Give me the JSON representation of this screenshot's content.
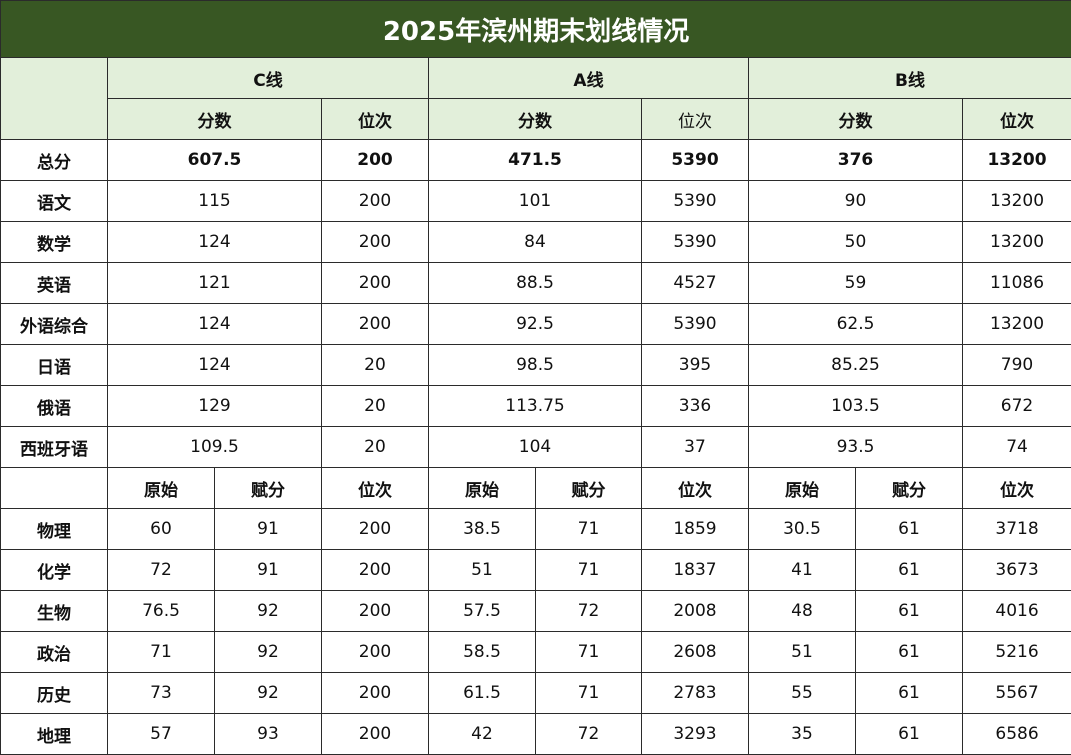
{
  "title": "2025年滨州期末划线情况",
  "groups": [
    "C线",
    "A线",
    "B线"
  ],
  "header_sub": [
    "分数",
    "位次",
    "分数",
    "位次",
    "分数",
    "位次"
  ],
  "rows1": [
    {
      "subject": "总分",
      "v": [
        "607.5",
        "200",
        "471.5",
        "5390",
        "376",
        "13200"
      ]
    },
    {
      "subject": "语文",
      "v": [
        "115",
        "200",
        "101",
        "5390",
        "90",
        "13200"
      ]
    },
    {
      "subject": "数学",
      "v": [
        "124",
        "200",
        "84",
        "5390",
        "50",
        "13200"
      ]
    },
    {
      "subject": "英语",
      "v": [
        "121",
        "200",
        "88.5",
        "4527",
        "59",
        "11086"
      ]
    },
    {
      "subject": "外语综合",
      "v": [
        "124",
        "200",
        "92.5",
        "5390",
        "62.5",
        "13200"
      ]
    },
    {
      "subject": "日语",
      "v": [
        "124",
        "20",
        "98.5",
        "395",
        "85.25",
        "790"
      ]
    },
    {
      "subject": "俄语",
      "v": [
        "129",
        "20",
        "113.75",
        "336",
        "103.5",
        "672"
      ]
    },
    {
      "subject": "西班牙语",
      "v": [
        "109.5",
        "20",
        "104",
        "37",
        "93.5",
        "74"
      ]
    }
  ],
  "header2": [
    "原始",
    "赋分",
    "位次",
    "原始",
    "赋分",
    "位次",
    "原始",
    "赋分",
    "位次"
  ],
  "rows2": [
    {
      "subject": "物理",
      "v": [
        "60",
        "91",
        "200",
        "38.5",
        "71",
        "1859",
        "30.5",
        "61",
        "3718"
      ]
    },
    {
      "subject": "化学",
      "v": [
        "72",
        "91",
        "200",
        "51",
        "71",
        "1837",
        "41",
        "61",
        "3673"
      ]
    },
    {
      "subject": "生物",
      "v": [
        "76.5",
        "92",
        "200",
        "57.5",
        "72",
        "2008",
        "48",
        "61",
        "4016"
      ]
    },
    {
      "subject": "政治",
      "v": [
        "71",
        "92",
        "200",
        "58.5",
        "71",
        "2608",
        "51",
        "61",
        "5216"
      ]
    },
    {
      "subject": "历史",
      "v": [
        "73",
        "92",
        "200",
        "61.5",
        "71",
        "2783",
        "55",
        "61",
        "5567"
      ]
    },
    {
      "subject": "地理",
      "v": [
        "57",
        "93",
        "200",
        "42",
        "72",
        "3293",
        "35",
        "61",
        "6586"
      ]
    }
  ]
}
